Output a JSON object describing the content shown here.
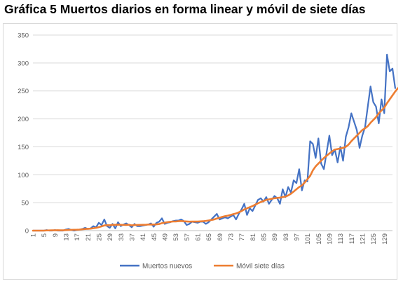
{
  "title": "Gráfica 5 Muertos diarios en forma linear y móvil de siete días",
  "chart_data": {
    "type": "line",
    "title": "Gráfica 5 Muertos diarios en forma linear y móvil de siete días",
    "xlabel": "",
    "ylabel": "",
    "ylim": [
      0,
      350
    ],
    "yticks": [
      0,
      50,
      100,
      150,
      200,
      250,
      300,
      350
    ],
    "xlim": [
      1,
      132
    ],
    "xticks": [
      1,
      5,
      9,
      13,
      17,
      21,
      25,
      29,
      33,
      37,
      41,
      45,
      49,
      53,
      57,
      61,
      65,
      69,
      73,
      77,
      81,
      85,
      89,
      93,
      97,
      101,
      105,
      109,
      113,
      117,
      121,
      125,
      129
    ],
    "grid": "horizontal",
    "legend_position": "bottom",
    "series": [
      {
        "name": "Muertos nuevos",
        "color": "#4472C4",
        "values": [
          0,
          0,
          0,
          0,
          0,
          1,
          0,
          0,
          1,
          0,
          0,
          0,
          2,
          3,
          1,
          0,
          1,
          2,
          3,
          5,
          3,
          4,
          8,
          6,
          14,
          10,
          20,
          8,
          5,
          12,
          4,
          15,
          8,
          11,
          13,
          10,
          6,
          12,
          8,
          8,
          9,
          10,
          11,
          13,
          7,
          14,
          16,
          22,
          12,
          14,
          15,
          17,
          18,
          18,
          20,
          17,
          10,
          12,
          16,
          15,
          14,
          16,
          16,
          12,
          15,
          20,
          25,
          30,
          20,
          22,
          24,
          22,
          25,
          28,
          20,
          30,
          38,
          48,
          28,
          40,
          35,
          45,
          55,
          58,
          52,
          60,
          48,
          55,
          62,
          58,
          48,
          74,
          60,
          78,
          68,
          90,
          85,
          110,
          72,
          90,
          88,
          160,
          155,
          130,
          165,
          120,
          110,
          140,
          170,
          135,
          145,
          122,
          150,
          125,
          168,
          185,
          210,
          195,
          180,
          148,
          170,
          185,
          222,
          258,
          230,
          222,
          192,
          235,
          210,
          315,
          285,
          290,
          255
        ]
      },
      {
        "name": "Móvil siete días",
        "color": "#ED7D31",
        "values": [
          0,
          0,
          0,
          0,
          0,
          0.3,
          0.4,
          0.5,
          0.6,
          0.7,
          0.6,
          0.6,
          0.9,
          1.2,
          1.4,
          1.5,
          1.6,
          1.9,
          2.4,
          2.9,
          3.2,
          3.5,
          4.2,
          5,
          6.2,
          7.6,
          9.3,
          9.6,
          9.6,
          10.5,
          10.4,
          10.7,
          10.5,
          10.2,
          10.1,
          10.5,
          9.4,
          10.1,
          10.2,
          10.3,
          10.4,
          10.5,
          10.9,
          11,
          10.9,
          11.2,
          11.8,
          13.4,
          14.3,
          15.1,
          15.8,
          16.3,
          16.3,
          16.9,
          17.2,
          16.7,
          16.4,
          16.1,
          16.3,
          16.2,
          16.3,
          16.5,
          16.8,
          17.4,
          18.1,
          19,
          20,
          21.6,
          23,
          24.6,
          25.8,
          26.8,
          28,
          29.5,
          30.8,
          32.7,
          35,
          38,
          40,
          42,
          44,
          46.5,
          49,
          51,
          53,
          55,
          56,
          57,
          58,
          58.5,
          59,
          60,
          61,
          63,
          66,
          70,
          74,
          78,
          81,
          86,
          92,
          98,
          108,
          115,
          120,
          125,
          130,
          134,
          138,
          142,
          145,
          146,
          147,
          148,
          150,
          154,
          160,
          165,
          170,
          175,
          180,
          183,
          187,
          193,
          198,
          203,
          210,
          215,
          220,
          228,
          235,
          242,
          249,
          255
        ]
      }
    ]
  }
}
